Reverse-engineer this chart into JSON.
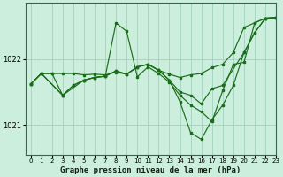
{
  "title": "Graphe pression niveau de la mer (hPa)",
  "background_color": "#cceedd",
  "line_color": "#1a6e1a",
  "grid_color": "#99ccbb",
  "xlim": [
    -0.5,
    23
  ],
  "ylim": [
    1020.55,
    1022.85
  ],
  "yticks": [
    1021,
    1022
  ],
  "xticks": [
    0,
    1,
    2,
    3,
    4,
    5,
    6,
    7,
    8,
    9,
    10,
    11,
    12,
    13,
    14,
    15,
    16,
    17,
    18,
    19,
    20,
    21,
    22,
    23
  ],
  "series1_x": [
    0,
    1,
    2,
    3,
    4,
    5,
    6,
    7,
    8,
    9,
    10,
    11,
    12,
    13,
    14,
    15,
    16,
    17,
    18,
    19,
    20,
    21,
    22,
    23
  ],
  "series1_y": [
    1021.62,
    1021.78,
    1021.78,
    1021.78,
    1021.78,
    1021.76,
    1021.77,
    1021.76,
    1021.8,
    1021.77,
    1021.88,
    1021.92,
    1021.83,
    1021.77,
    1021.72,
    1021.76,
    1021.78,
    1021.87,
    1021.92,
    1022.1,
    1022.48,
    1022.55,
    1022.62,
    1022.63
  ],
  "series2_x": [
    0,
    1,
    3,
    4,
    5,
    6,
    7,
    8,
    9,
    10,
    11,
    12,
    13,
    14,
    15,
    16,
    17,
    18,
    19,
    20,
    21,
    22,
    23
  ],
  "series2_y": [
    1021.62,
    1021.78,
    1021.45,
    1021.6,
    1021.68,
    1021.72,
    1021.74,
    1022.55,
    1022.42,
    1021.73,
    1021.88,
    1021.78,
    1021.65,
    1021.45,
    1021.3,
    1021.2,
    1021.05,
    1021.52,
    1021.92,
    1021.95,
    1022.55,
    1022.62,
    1022.63
  ],
  "series3_x": [
    0,
    1,
    2,
    3,
    4,
    5,
    6,
    7,
    8,
    9,
    10,
    11,
    12,
    13,
    14,
    15,
    16,
    17,
    18,
    19,
    20,
    21,
    22,
    23
  ],
  "series3_y": [
    1021.62,
    1021.78,
    1021.78,
    1021.45,
    1021.6,
    1021.68,
    1021.72,
    1021.74,
    1021.82,
    1021.77,
    1021.88,
    1021.92,
    1021.83,
    1021.68,
    1021.35,
    1020.88,
    1020.78,
    1021.08,
    1021.3,
    1021.6,
    1022.1,
    1022.4,
    1022.62,
    1022.63
  ],
  "series4_x": [
    0,
    1,
    3,
    5,
    6,
    7,
    8,
    9,
    10,
    11,
    12,
    13,
    14,
    15,
    16,
    17,
    18,
    20,
    21,
    22,
    23
  ],
  "series4_y": [
    1021.62,
    1021.78,
    1021.45,
    1021.68,
    1021.72,
    1021.74,
    1021.82,
    1021.77,
    1021.88,
    1021.92,
    1021.83,
    1021.68,
    1021.5,
    1021.45,
    1021.32,
    1021.55,
    1021.6,
    1022.1,
    1022.4,
    1022.62,
    1022.63
  ]
}
